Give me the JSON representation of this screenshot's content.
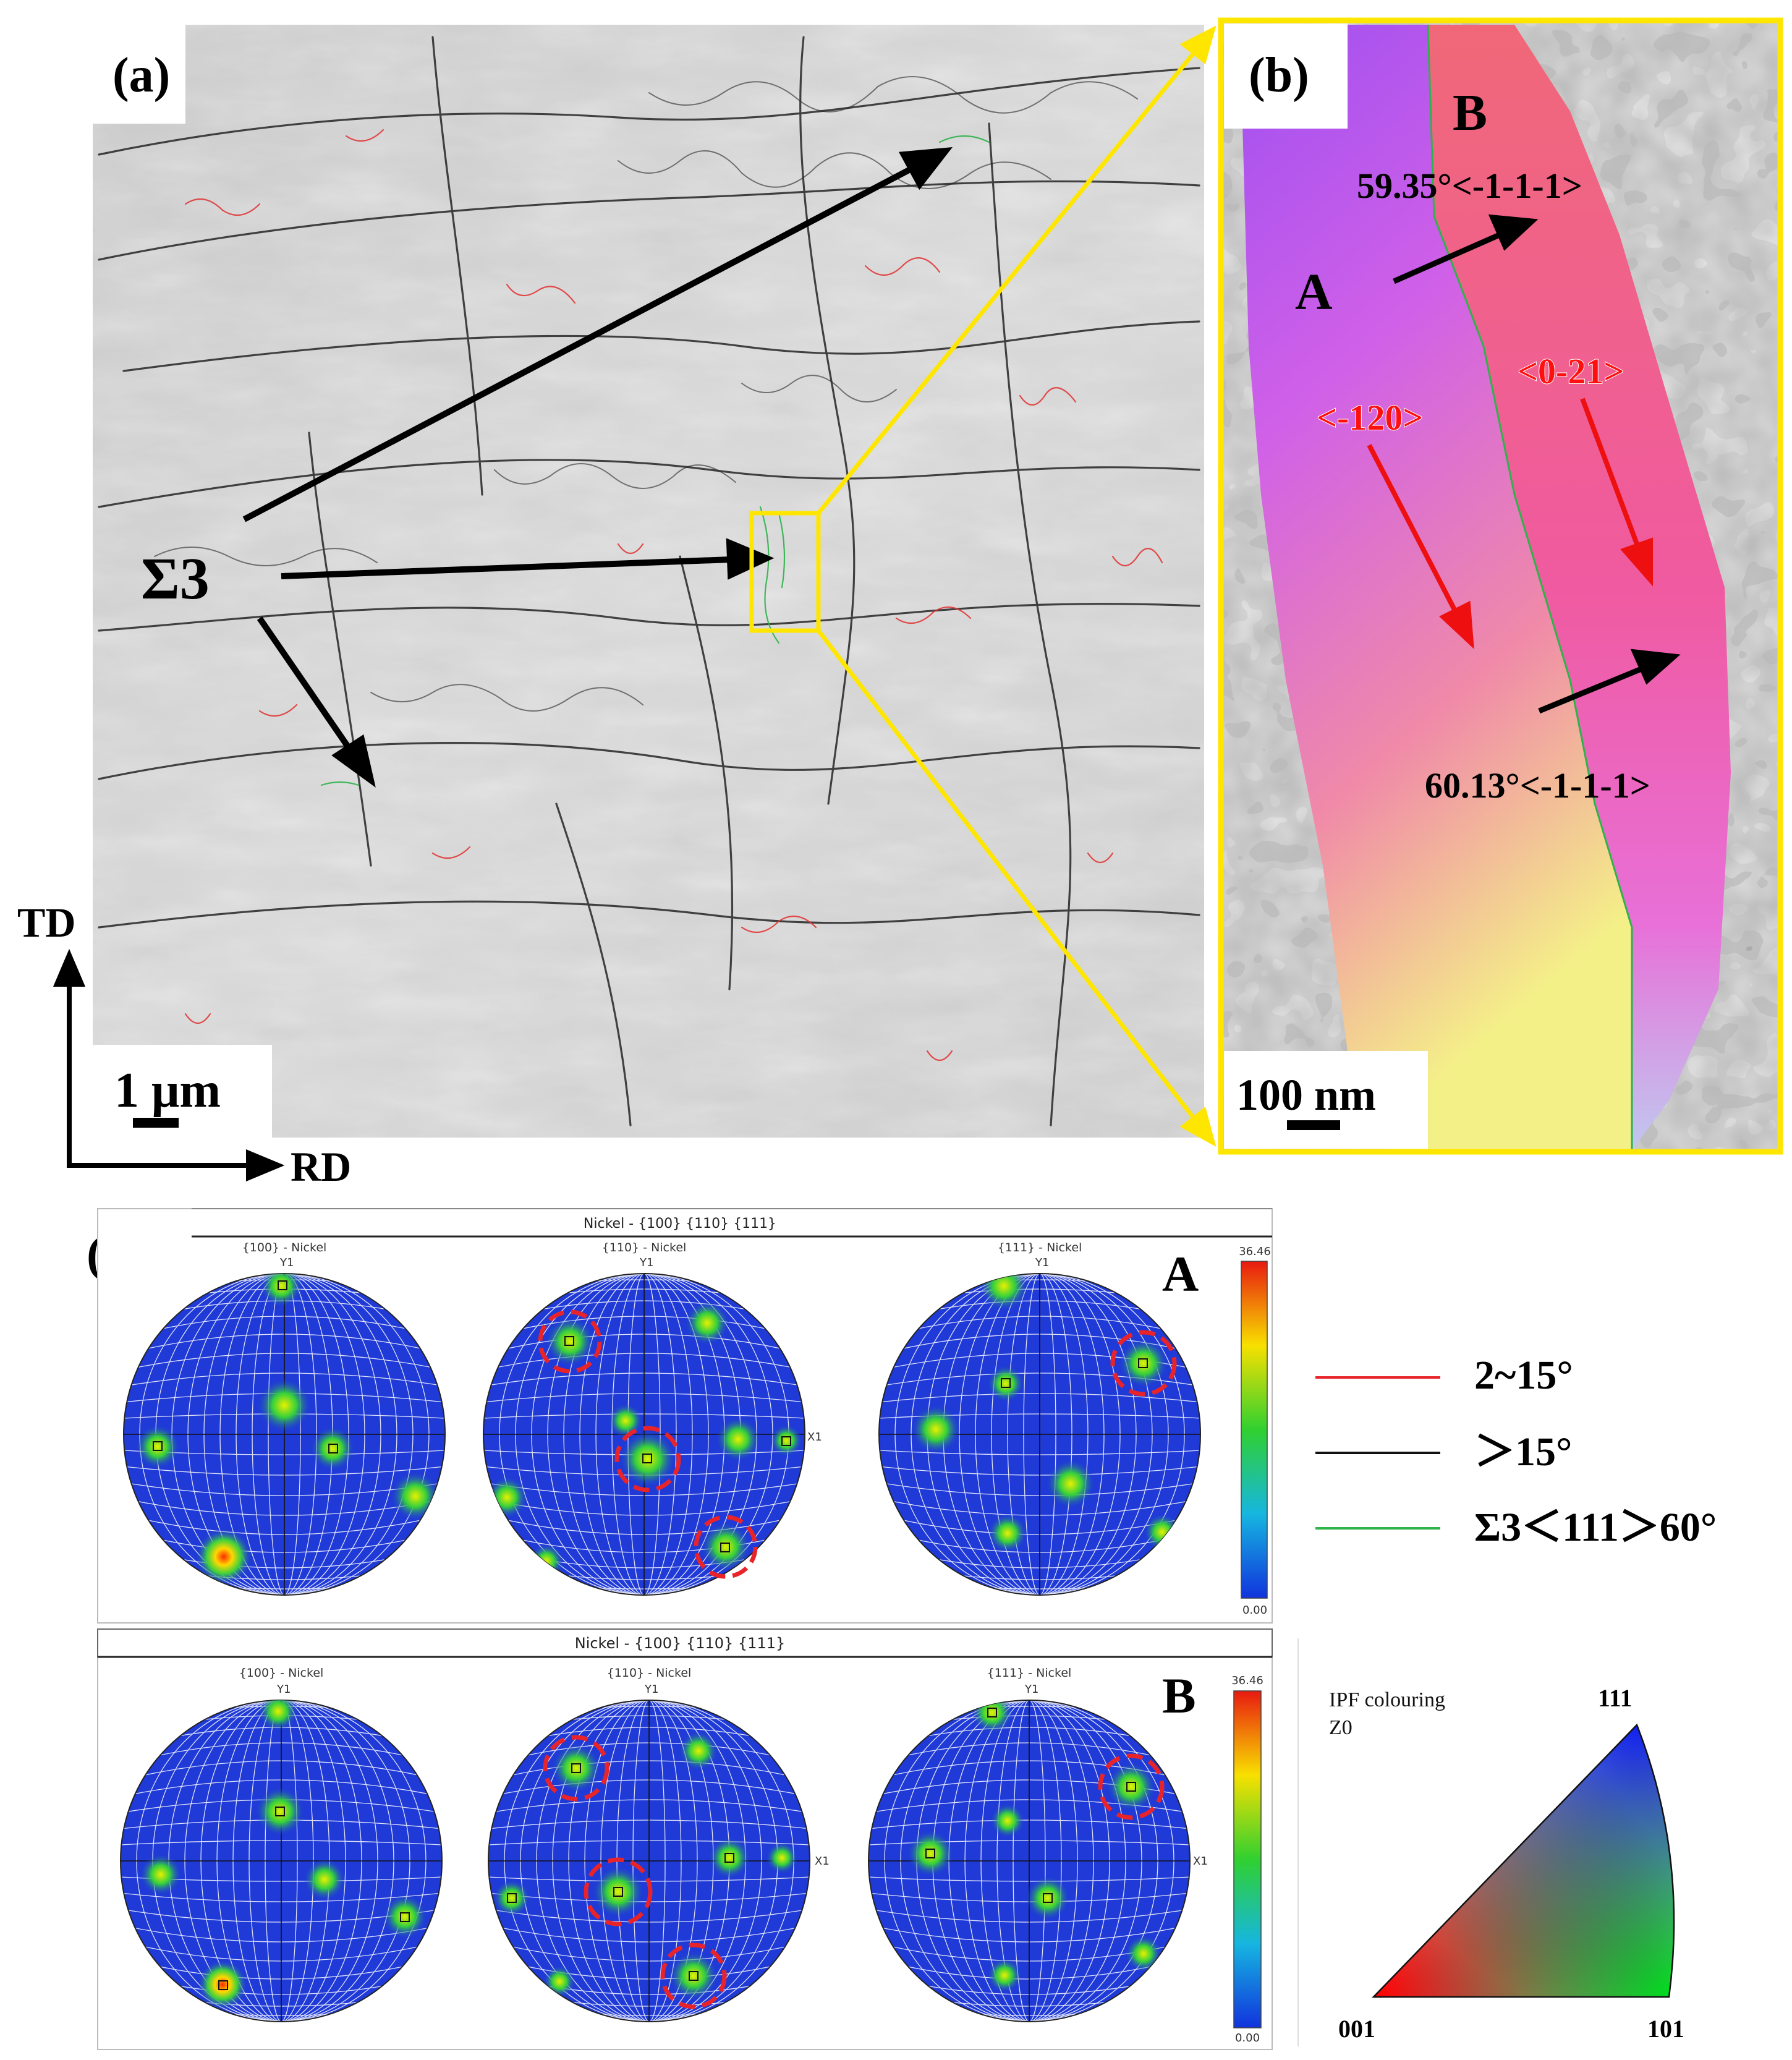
{
  "panels": {
    "a": {
      "label": "(a)",
      "sigma3_label": "Σ3",
      "axis_td": "TD",
      "axis_rd": "RD",
      "scale_bar": "1 μm"
    },
    "b": {
      "label": "(b)",
      "grain_a": "A",
      "grain_b": "B",
      "misorientation_top": "59.35°<-1-1-1>",
      "misorientation_bottom": "60.13°<-1-1-1>",
      "direction_left": "<-120>",
      "direction_right": "<0-21>",
      "scale_bar": "100 nm"
    },
    "c": {
      "label": "(c)",
      "rows": [
        {
          "id": "A",
          "header": "Nickel - {100} {110} {111}",
          "subtitles": [
            "{100} - Nickel",
            "{110} - Nickel",
            "{111} - Nickel"
          ],
          "colorbar_max": "36.46",
          "colorbar_min": "0.00"
        },
        {
          "id": "B",
          "header": "Nickel - {100} {110} {111}",
          "subtitles": [
            "{100} - Nickel",
            "{110} - Nickel",
            "{111} - Nickel"
          ],
          "colorbar_max": "36.46",
          "colorbar_min": "0.00"
        }
      ],
      "axis_y": "Y1",
      "axis_x": "X1"
    }
  },
  "legend": {
    "items": [
      {
        "label": "2~15°",
        "color": "#e8242a"
      },
      {
        "label": "＞15°",
        "color": "#111111"
      },
      {
        "label": "Σ3＜111＞60°",
        "color": "#2db34a"
      }
    ]
  },
  "ipf": {
    "title": "IPF colouring",
    "subtitle": "Z0",
    "corner_001": "001",
    "corner_101": "101",
    "corner_111": "111"
  },
  "colors": {
    "highlight": "#ffe600",
    "pole_field": "#1f3ad6",
    "circle_marker": "#e8242a"
  }
}
